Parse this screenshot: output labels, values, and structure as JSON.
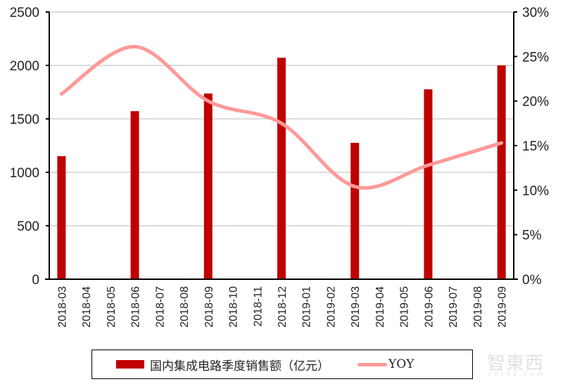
{
  "chart_data": {
    "type": "bar+line",
    "title": "",
    "categories": [
      "2018-03",
      "2018-04",
      "2018-05",
      "2018-06",
      "2018-07",
      "2018-08",
      "2018-09",
      "2018-10",
      "2018-11",
      "2018-12",
      "2019-01",
      "2019-02",
      "2019-03",
      "2019-04",
      "2019-05",
      "2019-06",
      "2019-07",
      "2019-08",
      "2019-09"
    ],
    "series": [
      {
        "name": "国内集成电路季度销售额（亿元）",
        "type": "bar",
        "axis": "left",
        "color": "#C00000",
        "values": [
          1151,
          null,
          null,
          1572,
          null,
          null,
          1737,
          null,
          null,
          2072,
          null,
          null,
          1276,
          null,
          null,
          1776,
          null,
          null,
          2000
        ]
      },
      {
        "name": "YOY",
        "type": "line",
        "axis": "right",
        "color": "#FF9999",
        "smooth": true,
        "values": [
          20.8,
          null,
          null,
          26.1,
          null,
          null,
          20.0,
          null,
          null,
          17.5,
          null,
          null,
          10.4,
          null,
          null,
          12.8,
          null,
          null,
          15.3
        ]
      }
    ],
    "left_axis": {
      "ylim": [
        0,
        2500
      ],
      "ticks": [
        "0",
        "500",
        "1000",
        "1500",
        "2000",
        "2500"
      ]
    },
    "right_axis": {
      "ylim": [
        0,
        30
      ],
      "ticks": [
        "0%",
        "5%",
        "10%",
        "15%",
        "20%",
        "25%",
        "30%"
      ]
    },
    "xlabel": "",
    "ylabel": "",
    "grid": true,
    "legend_position": "bottom"
  },
  "legend": {
    "bar_label": "国内集成电路季度销售额（亿元）",
    "line_label": "YOY"
  },
  "watermark": {
    "main": "智東西",
    "sub": "zhidx.com"
  }
}
